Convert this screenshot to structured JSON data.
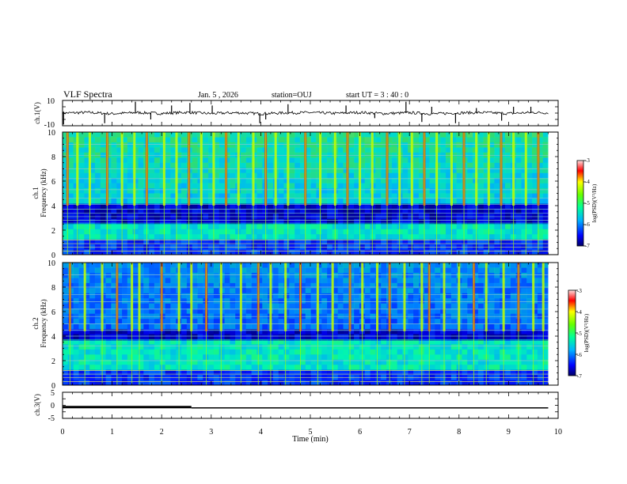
{
  "header": {
    "title": "VLF Spectra",
    "date": "Jan. 5 , 2026",
    "station": "station=OUJ",
    "start": "start UT = 3 : 40 : 0"
  },
  "colors": {
    "background": "#ffffff",
    "trace": "#000000"
  },
  "chart_data": [
    {
      "type": "line",
      "name": "ch1-waveform",
      "ylabel": "ch.1(V)",
      "ylim": [
        -10,
        10
      ],
      "yticks": [
        "10",
        "-10"
      ],
      "xlim": [
        0,
        10
      ],
      "x": [
        0,
        0.5,
        1.0,
        1.5,
        2.0,
        2.5,
        3.0,
        3.5,
        4.0,
        4.5,
        5.0,
        5.5,
        6.0,
        6.5,
        7.0,
        7.5,
        8.0,
        8.5,
        9.0,
        9.5,
        9.8
      ],
      "values": [
        0,
        0.5,
        -0.5,
        0.4,
        -0.3,
        0.6,
        -0.4,
        0.3,
        -0.5,
        0.2,
        0.4,
        -0.2,
        0.5,
        -0.4,
        0.3,
        -0.6,
        0.2,
        0.4,
        -0.3,
        0.5,
        0
      ],
      "spikes": [
        {
          "t": 0.02,
          "v": -9
        },
        {
          "t": 0.85,
          "v": -8
        },
        {
          "t": 1.47,
          "v": 9
        },
        {
          "t": 1.78,
          "v": -5
        },
        {
          "t": 2.2,
          "v": 6
        },
        {
          "t": 2.57,
          "v": 8
        },
        {
          "t": 3.02,
          "v": 6
        },
        {
          "t": 3.98,
          "v": -8
        },
        {
          "t": 4.1,
          "v": -5
        },
        {
          "t": 4.55,
          "v": 7
        },
        {
          "t": 5.72,
          "v": 6
        },
        {
          "t": 6.3,
          "v": -4
        },
        {
          "t": 6.93,
          "v": 9
        },
        {
          "t": 7.25,
          "v": -7
        },
        {
          "t": 7.45,
          "v": 5
        },
        {
          "t": 7.93,
          "v": -8
        },
        {
          "t": 8.35,
          "v": 4
        },
        {
          "t": 8.86,
          "v": -6
        },
        {
          "t": 9.1,
          "v": 5
        },
        {
          "t": 9.45,
          "v": 5
        }
      ]
    },
    {
      "type": "heatmap",
      "name": "ch1-spectrogram",
      "ylabel_top": "ch.1",
      "ylabel": "Frequency (kHz)",
      "ylim": [
        0,
        10
      ],
      "yticks": [
        "0",
        "2",
        "4",
        "6",
        "8",
        "10"
      ],
      "xlim": [
        0,
        10
      ],
      "data_end_min": 9.8,
      "upper_band_level": 0.6,
      "mid_band_range_khz": [
        1.2,
        2.6
      ],
      "dark_band_range_khz": [
        2.6,
        4.1
      ],
      "noise_floor_freq_khz": 4.0,
      "hum_lines_khz": [
        0.3,
        0.6,
        0.9,
        1.2,
        2.8,
        3.1,
        3.4,
        3.7,
        4.1,
        4.6,
        5.3,
        6.2,
        7.0,
        8.1,
        9.0
      ],
      "spheric_times_min": [
        0.1,
        0.3,
        0.55,
        0.9,
        1.2,
        1.45,
        1.7,
        2.05,
        2.3,
        2.55,
        2.8,
        3.05,
        3.3,
        3.55,
        3.85,
        4.1,
        4.3,
        4.55,
        4.9,
        5.2,
        5.5,
        5.75,
        6.0,
        6.25,
        6.55,
        6.8,
        7.05,
        7.3,
        7.55,
        7.85,
        8.1,
        8.35,
        8.6,
        8.85,
        9.1,
        9.35,
        9.6
      ],
      "colorbar": {
        "label": "log(PSD)(V²/Hz)",
        "range": [
          -7,
          -3
        ],
        "ticks": [
          "-3",
          "-4",
          "-5",
          "-6",
          "-7"
        ]
      }
    },
    {
      "type": "heatmap",
      "name": "ch2-spectrogram",
      "ylabel_top": "ch.2",
      "ylabel": "Frequency (kHz)",
      "ylim": [
        0,
        10
      ],
      "yticks": [
        "0",
        "2",
        "4",
        "6",
        "8",
        "10"
      ],
      "xlim": [
        0,
        10
      ],
      "data_end_min": 9.8,
      "upper_band_level": 0.4,
      "mid_band_range_khz": [
        1.2,
        3.6
      ],
      "dark_band_range_khz": [
        3.6,
        4.4
      ],
      "noise_floor_freq_khz": 4.4,
      "hum_lines_khz": [
        0.3,
        0.6,
        0.9,
        1.2,
        2.0,
        3.2,
        4.0,
        4.5,
        5.0,
        5.6,
        6.2,
        6.8,
        7.4,
        8.0,
        9.0
      ],
      "spheric_times_min": [
        0.15,
        0.45,
        0.8,
        1.1,
        1.4,
        1.55,
        2.0,
        2.35,
        2.6,
        2.9,
        3.2,
        3.6,
        3.95,
        4.2,
        4.5,
        4.8,
        5.15,
        5.45,
        5.8,
        6.05,
        6.35,
        6.6,
        6.9,
        7.25,
        7.4,
        7.7,
        8.0,
        8.3,
        8.55,
        8.9,
        9.2,
        9.5,
        9.7
      ],
      "colorbar": {
        "label": "log(PSD)(V²/Hz)",
        "range": [
          -7,
          -3
        ],
        "ticks": [
          "-3",
          "-4",
          "-5",
          "-6",
          "-7"
        ]
      }
    },
    {
      "type": "line",
      "name": "ch3-signal",
      "ylabel": "ch.3(V)",
      "ylim": [
        -5,
        5
      ],
      "yticks": [
        "5",
        "0",
        "-5"
      ],
      "xlim": [
        0,
        10
      ],
      "xlabel": "Time (min)",
      "xticks": [
        "0",
        "1",
        "2",
        "3",
        "4",
        "5",
        "6",
        "7",
        "8",
        "9",
        "10"
      ],
      "x": [
        0,
        2.6,
        2.6,
        9.8
      ],
      "values": [
        -0.7,
        -0.7,
        -1.0,
        -1.0
      ],
      "bold_until_min": 2.6
    }
  ]
}
